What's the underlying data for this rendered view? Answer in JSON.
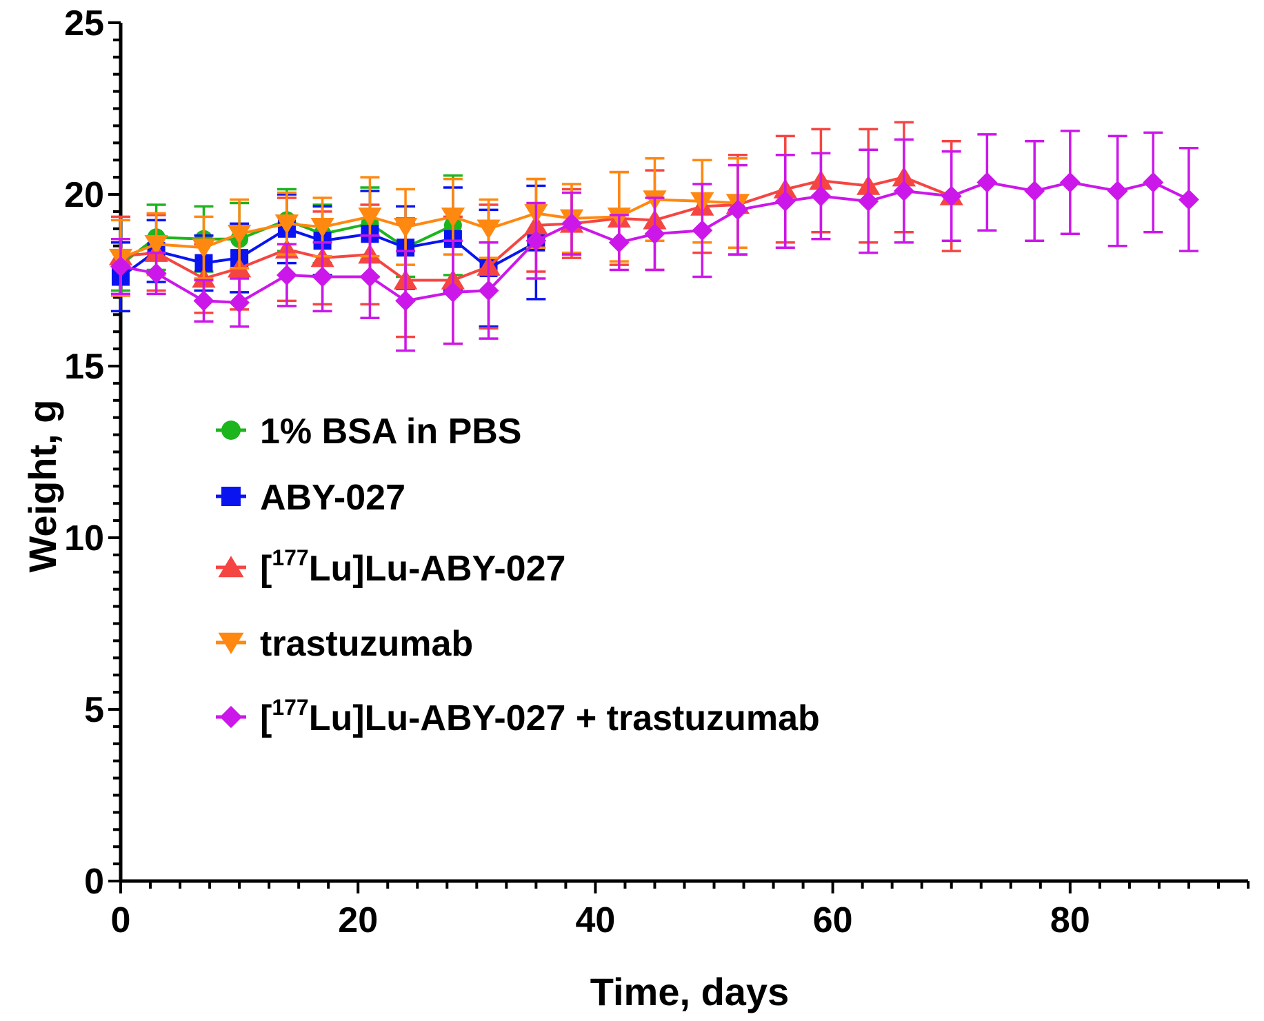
{
  "chart_data": {
    "type": "line",
    "xlabel": "Time, days",
    "ylabel": "Weight, g",
    "xlim": [
      0,
      95
    ],
    "ylim": [
      0,
      25
    ],
    "xticks": [
      0,
      20,
      40,
      60,
      80
    ],
    "yticks": [
      0,
      5,
      10,
      15,
      20,
      25
    ],
    "xtick_labels": [
      "0",
      "20",
      "40",
      "60",
      "80"
    ],
    "ytick_labels": [
      "0",
      "5",
      "10",
      "15",
      "20",
      "25"
    ],
    "legend_placement": "center-left",
    "series": [
      {
        "name": "1% BSA in PBS",
        "label_parts": [
          "1% BSA in PBS"
        ],
        "color": "#1DB51D",
        "marker": "circle",
        "x": [
          0,
          3,
          7,
          10,
          14,
          17,
          21,
          24,
          28
        ],
        "y": [
          17.95,
          18.75,
          18.7,
          18.7,
          19.25,
          18.85,
          19.15,
          18.45,
          19.1
        ],
        "err": [
          0.75,
          0.95,
          0.95,
          1.05,
          0.9,
          0.85,
          1.05,
          0.85,
          1.45
        ]
      },
      {
        "name": "ABY-027",
        "label_parts": [
          "ABY-027"
        ],
        "color": "#0A14F0",
        "marker": "square",
        "x": [
          0,
          3,
          7,
          10,
          14,
          17,
          21,
          24,
          28,
          31,
          35
        ],
        "y": [
          17.6,
          18.35,
          18.0,
          18.15,
          19.0,
          18.65,
          18.85,
          18.45,
          18.7,
          17.85,
          18.6
        ],
        "err": [
          1.0,
          0.9,
          0.8,
          1.0,
          1.0,
          1.0,
          1.25,
          1.2,
          1.5,
          1.7,
          1.65
        ]
      },
      {
        "name": "[177Lu]Lu-ABY-027",
        "label_parts": [
          "[",
          "177",
          "Lu]Lu-ABY-027"
        ],
        "color": "#F54542",
        "marker": "triangle-up",
        "x": [
          0,
          3,
          7,
          10,
          14,
          17,
          21,
          24,
          28,
          31,
          35,
          38,
          42,
          45,
          49,
          52,
          56,
          59,
          63,
          66,
          70
        ],
        "y": [
          18.2,
          18.3,
          17.55,
          17.85,
          18.4,
          18.15,
          18.25,
          17.5,
          17.5,
          17.9,
          19.1,
          19.15,
          19.3,
          19.25,
          19.65,
          19.7,
          20.15,
          20.4,
          20.25,
          20.5,
          19.95
        ],
        "err": [
          1.15,
          1.1,
          1.0,
          1.2,
          1.5,
          1.35,
          1.45,
          1.65,
          1.85,
          1.8,
          1.35,
          1.0,
          1.35,
          1.45,
          1.35,
          1.45,
          1.55,
          1.5,
          1.65,
          1.6,
          1.6
        ]
      },
      {
        "name": "trastuzumab",
        "label_parts": [
          "trastuzumab"
        ],
        "color": "#FF8810",
        "marker": "triangle-down",
        "x": [
          0,
          3,
          7,
          10,
          14,
          17,
          21,
          24,
          28,
          31,
          35,
          38,
          42,
          45,
          49,
          52
        ],
        "y": [
          18.15,
          18.55,
          18.45,
          18.85,
          19.15,
          19.05,
          19.35,
          19.05,
          19.35,
          19.0,
          19.45,
          19.3,
          19.35,
          19.85,
          19.8,
          19.75
        ],
        "err": [
          1.1,
          0.9,
          0.9,
          1.0,
          0.9,
          0.85,
          1.15,
          1.1,
          1.1,
          0.85,
          1.0,
          1.0,
          1.3,
          1.2,
          1.2,
          1.3
        ]
      },
      {
        "name": "[177Lu]Lu-ABY-027 + trastuzumab",
        "label_parts": [
          "[",
          "177",
          "Lu]Lu-ABY-027 + trastuzumab"
        ],
        "color": "#CC17EA",
        "marker": "diamond",
        "x": [
          0,
          3,
          7,
          10,
          14,
          17,
          21,
          24,
          28,
          31,
          35,
          38,
          42,
          45,
          49,
          52,
          56,
          59,
          63,
          66,
          70,
          73,
          77,
          80,
          84,
          87,
          90
        ],
        "y": [
          17.9,
          17.7,
          16.9,
          16.85,
          17.65,
          17.6,
          17.6,
          16.9,
          17.15,
          17.2,
          18.65,
          19.15,
          18.6,
          18.85,
          18.95,
          19.55,
          19.8,
          19.95,
          19.8,
          20.1,
          19.95,
          20.35,
          20.1,
          20.35,
          20.1,
          20.35,
          19.85
        ],
        "err": [
          0.8,
          0.6,
          0.6,
          0.7,
          0.9,
          1.0,
          1.2,
          1.45,
          1.5,
          1.4,
          1.1,
          0.9,
          0.8,
          1.05,
          1.35,
          1.3,
          1.35,
          1.25,
          1.5,
          1.5,
          1.3,
          1.4,
          1.45,
          1.5,
          1.6,
          1.45,
          1.5
        ]
      }
    ]
  }
}
